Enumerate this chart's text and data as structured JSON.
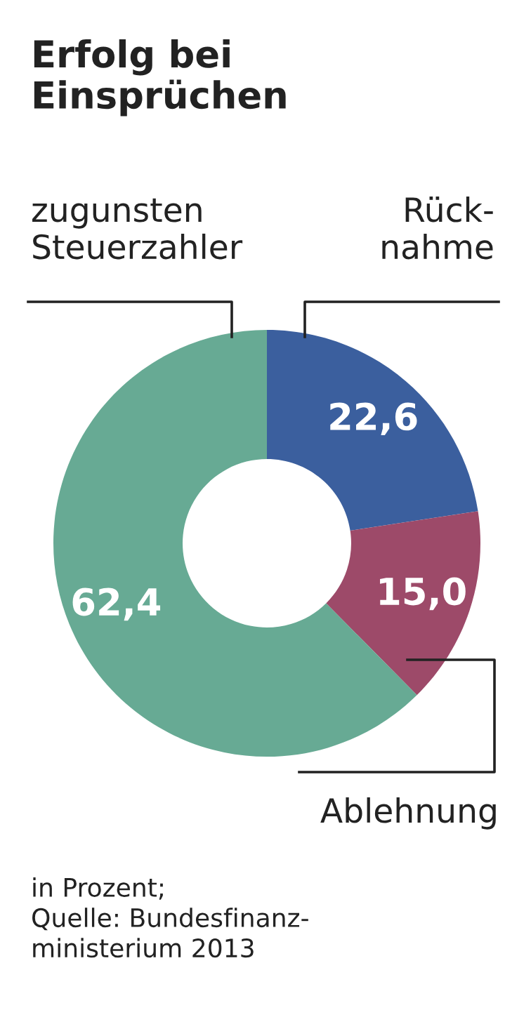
{
  "chart_data": {
    "type": "donut",
    "title": "Erfolg bei\nEinsprüchen",
    "categories": [
      "Rück-\nnahme",
      "Ablehnung",
      "zugunsten\nSteuerzahler"
    ],
    "values": [
      22.6,
      15.0,
      62.4
    ],
    "colors": [
      "#3b5f9e",
      "#9d4a69",
      "#67aa94"
    ],
    "value_labels": [
      "22,6",
      "15,0",
      "62,4"
    ],
    "annotations": [
      "in Prozent;\nQuelle: Bundesfinanz-\nministerium 2013"
    ]
  }
}
